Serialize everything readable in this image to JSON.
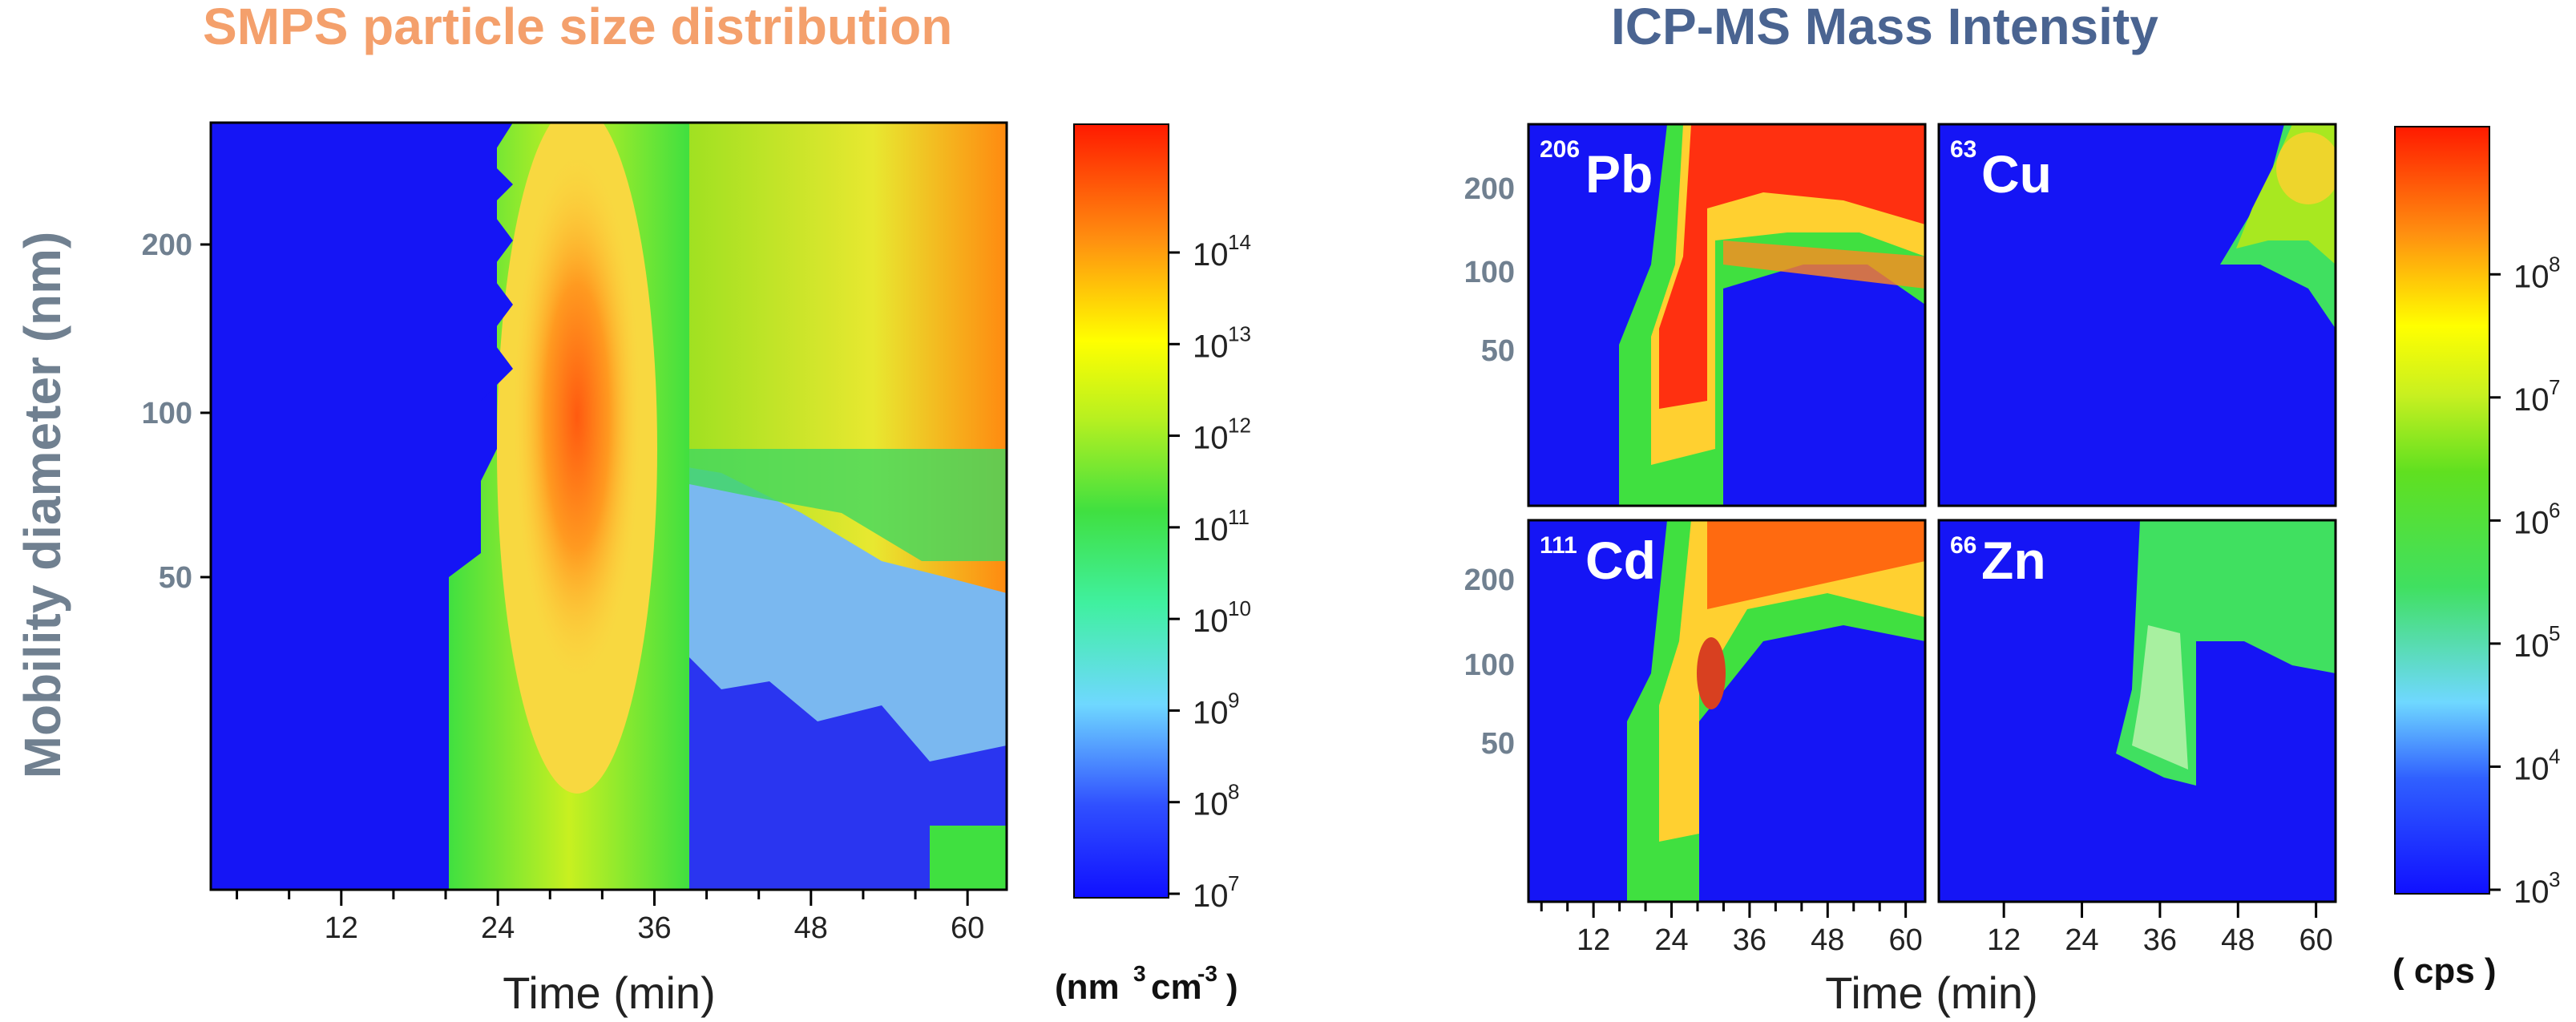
{
  "titles": {
    "smps": "SMPS particle size distribution",
    "icp": "ICP-MS Mass Intensity"
  },
  "smps": {
    "ylabel": "Mobility diameter (nm)",
    "xlabel": "Time (min)",
    "x_ticks": [
      "12",
      "24",
      "36",
      "48",
      "60"
    ],
    "y_ticks": [
      "200",
      "100",
      "50"
    ],
    "colorbar": {
      "ticks": [
        {
          "base": "10",
          "exp": "14"
        },
        {
          "base": "10",
          "exp": "13"
        },
        {
          "base": "10",
          "exp": "12"
        },
        {
          "base": "10",
          "exp": "11"
        },
        {
          "base": "10",
          "exp": "10"
        },
        {
          "base": "10",
          "exp": "9"
        },
        {
          "base": "10",
          "exp": "8"
        },
        {
          "base": "10",
          "exp": "7"
        }
      ],
      "unit_main": "(nm",
      "unit_sup1": "3",
      "unit_mid": "cm",
      "unit_sup2": "-3",
      "unit_end": ")"
    }
  },
  "icp": {
    "xlabel": "Time (min)",
    "x_ticks": [
      "12",
      "24",
      "36",
      "48",
      "60"
    ],
    "y_ticks": [
      "200",
      "100",
      "50"
    ],
    "panels": [
      {
        "mass": "206",
        "element": "Pb"
      },
      {
        "mass": "63",
        "element": "Cu"
      },
      {
        "mass": "111",
        "element": "Cd"
      },
      {
        "mass": "66",
        "element": "Zn"
      }
    ],
    "colorbar": {
      "ticks": [
        {
          "base": "10",
          "exp": "8"
        },
        {
          "base": "10",
          "exp": "7"
        },
        {
          "base": "10",
          "exp": "6"
        },
        {
          "base": "10",
          "exp": "5"
        },
        {
          "base": "10",
          "exp": "4"
        },
        {
          "base": "10",
          "exp": "3"
        }
      ],
      "unit": "( cps )"
    }
  },
  "chart_data": [
    {
      "type": "heatmap",
      "title": "SMPS particle size distribution",
      "xlabel": "Time (min)",
      "ylabel": "Mobility diameter (nm)",
      "xlim": [
        2,
        63
      ],
      "ylim": [
        15,
        280
      ],
      "yscale": "log",
      "x_ticks": [
        12,
        24,
        36,
        48,
        60
      ],
      "y_ticks": [
        50,
        100,
        200
      ],
      "colorbar": {
        "scale": "log",
        "range": [
          10000000.0,
          1000000000000000.0
        ],
        "unit": "nm3 cm-3"
      },
      "description_regions": [
        {
          "time_range": [
            2,
            21
          ],
          "level": 10000000.0
        },
        {
          "time_range": [
            21,
            40
          ],
          "diameter_range": [
            15,
            280
          ],
          "level": 1000000000000.0
        },
        {
          "time_range": [
            29,
            38
          ],
          "diameter_range": [
            55,
            200
          ],
          "level": 100000000000000.0
        },
        {
          "time_range": [
            40,
            63
          ],
          "diameter_range": [
            60,
            280
          ],
          "level": 1000000000000.0
        }
      ]
    },
    {
      "type": "heatmap",
      "title": "ICP-MS Mass Intensity",
      "xlabel": "Time (min)",
      "xlim": [
        2,
        63
      ],
      "ylim": [
        15,
        280
      ],
      "yscale": "log",
      "x_ticks": [
        12,
        24,
        36,
        48,
        60
      ],
      "y_ticks": [
        50,
        100,
        200
      ],
      "colorbar": {
        "scale": "log",
        "range": [
          1000.0,
          1000000000.0
        ],
        "unit": "cps"
      },
      "panels": [
        "206Pb",
        "63Cu",
        "111Cd",
        "66Zn"
      ]
    }
  ]
}
